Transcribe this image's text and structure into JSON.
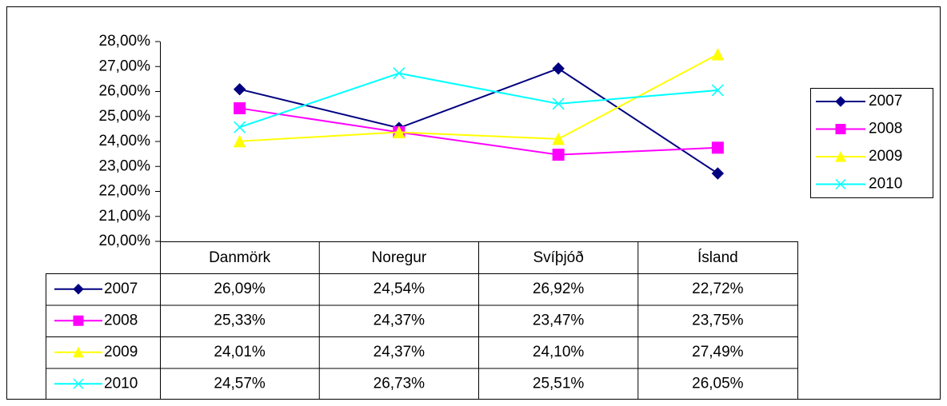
{
  "chart_data": {
    "type": "line",
    "categories": [
      "Danmörk",
      "Noregur",
      "Svíþjóð",
      "Ísland"
    ],
    "series": [
      {
        "name": "2007",
        "color": "#000080",
        "marker": "diamond",
        "values": [
          26.09,
          24.54,
          26.92,
          22.72
        ],
        "value_labels": [
          "26,09%",
          "24,54%",
          "26,92%",
          "22,72%"
        ]
      },
      {
        "name": "2008",
        "color": "#FF00FF",
        "marker": "square",
        "values": [
          25.33,
          24.37,
          23.47,
          23.75
        ],
        "value_labels": [
          "25,33%",
          "24,37%",
          "23,47%",
          "23,75%"
        ]
      },
      {
        "name": "2009",
        "color": "#FFFF00",
        "marker": "triangle",
        "values": [
          24.01,
          24.37,
          24.1,
          27.49
        ],
        "value_labels": [
          "24,01%",
          "24,37%",
          "24,10%",
          "27,49%"
        ]
      },
      {
        "name": "2010",
        "color": "#00FFFF",
        "marker": "x",
        "values": [
          24.57,
          26.73,
          25.51,
          26.05
        ],
        "value_labels": [
          "24,57%",
          "26,73%",
          "25,51%",
          "26,05%"
        ]
      }
    ],
    "ylim": [
      20,
      28
    ],
    "yticks": [
      {
        "value": 20,
        "label": "20,00%"
      },
      {
        "value": 21,
        "label": "21,00%"
      },
      {
        "value": 22,
        "label": "22,00%"
      },
      {
        "value": 23,
        "label": "23,00%"
      },
      {
        "value": 24,
        "label": "24,00%"
      },
      {
        "value": 25,
        "label": "25,00%"
      },
      {
        "value": 26,
        "label": "26,00%"
      },
      {
        "value": 27,
        "label": "27,00%"
      },
      {
        "value": 28,
        "label": "28,00%"
      }
    ],
    "legend": "right",
    "data_table": true
  }
}
